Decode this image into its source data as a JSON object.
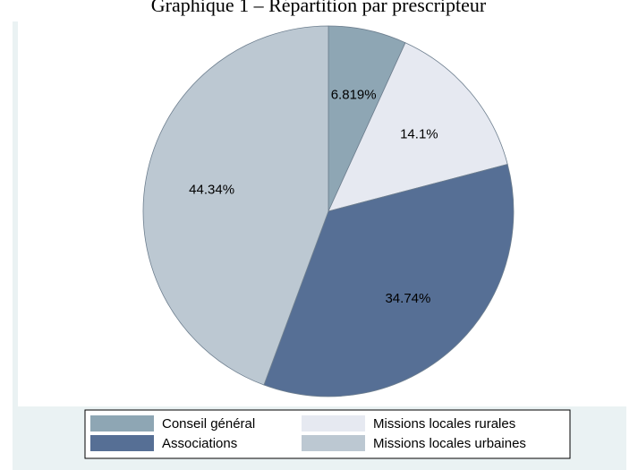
{
  "chart_data": {
    "type": "pie",
    "title": "Graphique 1 – Répartition par prescripteur",
    "categories": [
      "Conseil général",
      "Missions locales rurales",
      "Associations",
      "Missions locales urbaines"
    ],
    "values": [
      6.819,
      14.1,
      34.74,
      44.34
    ],
    "value_labels": [
      "6.819%",
      "14.1%",
      "34.74%",
      "44.34%"
    ],
    "colors": [
      "#8ea6b4",
      "#e6e9f1",
      "#566f95",
      "#bcc8d2"
    ],
    "legend": "bottom"
  }
}
